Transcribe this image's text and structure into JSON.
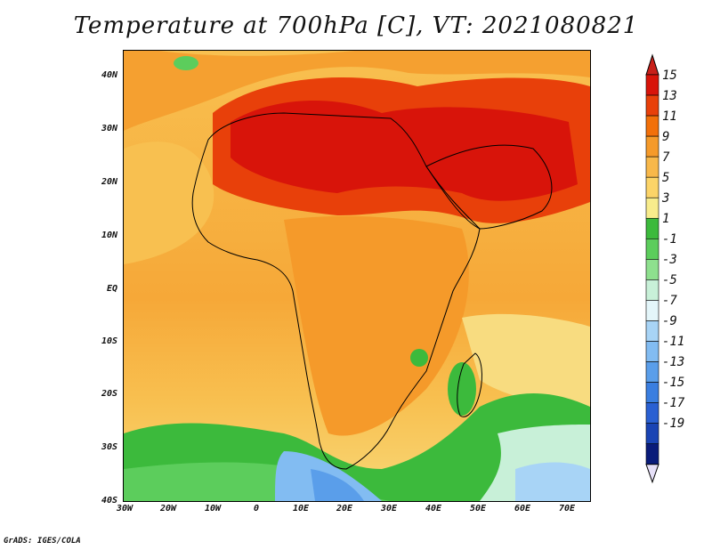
{
  "title": "Temperature at 700hPa [C], VT: 2021080821",
  "credit": "GrADS: IGES/COLA",
  "map": {
    "projection": "lat-lon",
    "lon_range": [
      -30,
      75
    ],
    "lat_range": [
      -40,
      45
    ],
    "lat_ticks": [
      "40N",
      "30N",
      "20N",
      "10N",
      "EQ",
      "10S",
      "20S",
      "30S",
      "40S"
    ],
    "lon_ticks": [
      "30W",
      "20W",
      "10W",
      "0",
      "10E",
      "20E",
      "30E",
      "40E",
      "50E",
      "60E",
      "70E"
    ],
    "field": "temperature_700hPa",
    "units": "C"
  },
  "colorbar": {
    "labels": [
      "15",
      "13",
      "11",
      "9",
      "7",
      "5",
      "3",
      "1",
      "-1",
      "-3",
      "-5",
      "-7",
      "-9",
      "-11",
      "-13",
      "-15",
      "-17",
      "-19"
    ],
    "colors": [
      "#d8140a",
      "#e8400a",
      "#f2700a",
      "#f59a2a",
      "#f8b84a",
      "#fcd468",
      "#f8ec8c",
      "#3cba3c",
      "#5ccd5c",
      "#8ee08e",
      "#c8f0d8",
      "#e4f6fa",
      "#a8d4f6",
      "#82bcf2",
      "#5a9eea",
      "#3a7ee0",
      "#2a60d2",
      "#1a44b4",
      "#0a1c7a"
    ],
    "top_color": "#c8201a",
    "bottom_color": "#e6e0f8"
  }
}
